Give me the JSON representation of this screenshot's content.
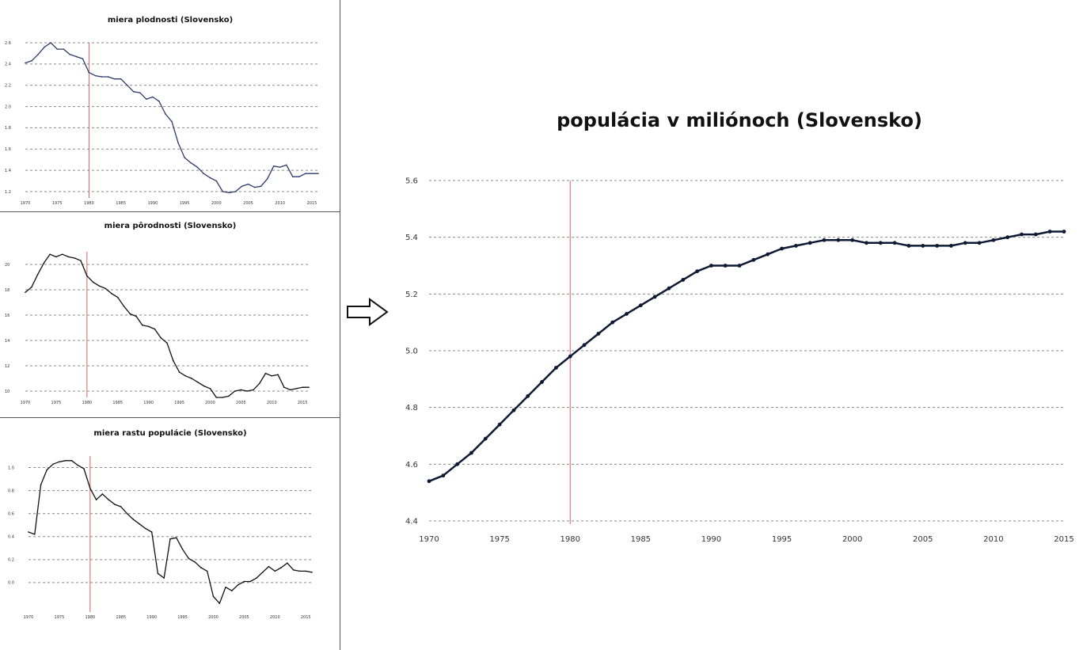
{
  "chart_data": [
    {
      "id": "fertility",
      "type": "line",
      "title": "miera plodnosti (Slovensko)",
      "x": [
        1970,
        1971,
        1972,
        1973,
        1974,
        1975,
        1976,
        1977,
        1978,
        1979,
        1980,
        1981,
        1982,
        1983,
        1984,
        1985,
        1986,
        1987,
        1988,
        1989,
        1990,
        1991,
        1992,
        1993,
        1994,
        1995,
        1996,
        1997,
        1998,
        1999,
        2000,
        2001,
        2002,
        2003,
        2004,
        2005,
        2006,
        2007,
        2008,
        2009,
        2010,
        2011,
        2012,
        2013,
        2014,
        2015,
        2016
      ],
      "values": [
        2.41,
        2.43,
        2.49,
        2.56,
        2.6,
        2.54,
        2.54,
        2.49,
        2.47,
        2.45,
        2.32,
        2.29,
        2.28,
        2.28,
        2.26,
        2.26,
        2.2,
        2.14,
        2.13,
        2.07,
        2.09,
        2.05,
        1.93,
        1.86,
        1.66,
        1.52,
        1.47,
        1.43,
        1.37,
        1.33,
        1.3,
        1.2,
        1.19,
        1.2,
        1.25,
        1.27,
        1.24,
        1.25,
        1.32,
        1.44,
        1.43,
        1.45,
        1.34,
        1.34,
        1.37,
        1.37,
        1.37
      ],
      "yticks": [
        "1.2",
        "1.4",
        "1.6",
        "1.8",
        "2.0",
        "2.2",
        "2.4",
        "2.6"
      ],
      "ylim": [
        1.2,
        2.6
      ],
      "xticks": [
        "1970",
        "1975",
        "1980",
        "1985",
        "1990",
        "1995",
        "2000",
        "2005",
        "2010",
        "2015"
      ],
      "marker_year": 1980,
      "line_color": "#2d3a6b",
      "grid": true
    },
    {
      "id": "birth",
      "type": "line",
      "title": "miera pôrodnosti (Slovensko)",
      "x": [
        1970,
        1971,
        1972,
        1973,
        1974,
        1975,
        1976,
        1977,
        1978,
        1979,
        1980,
        1981,
        1982,
        1983,
        1984,
        1985,
        1986,
        1987,
        1988,
        1989,
        1990,
        1991,
        1992,
        1993,
        1994,
        1995,
        1996,
        1997,
        1998,
        1999,
        2000,
        2001,
        2002,
        2003,
        2004,
        2005,
        2006,
        2007,
        2008,
        2009,
        2010,
        2011,
        2012,
        2013,
        2014,
        2015,
        2016
      ],
      "values": [
        17.8,
        18.2,
        19.2,
        20.1,
        20.8,
        20.6,
        20.8,
        20.6,
        20.5,
        20.3,
        19.1,
        18.6,
        18.3,
        18.1,
        17.7,
        17.4,
        16.7,
        16.1,
        15.9,
        15.2,
        15.1,
        14.9,
        14.2,
        13.8,
        12.4,
        11.5,
        11.2,
        11.0,
        10.7,
        10.4,
        10.2,
        9.5,
        9.5,
        9.6,
        10.0,
        10.1,
        10.0,
        10.1,
        10.6,
        11.4,
        11.2,
        11.3,
        10.3,
        10.1,
        10.2,
        10.3,
        10.3
      ],
      "yticks": [
        "10",
        "12",
        "14",
        "16",
        "18",
        "20"
      ],
      "ylim": [
        10,
        21
      ],
      "xticks": [
        "1970",
        "1975",
        "1980",
        "1985",
        "1990",
        "1995",
        "2000",
        "2005",
        "2010",
        "2015"
      ],
      "marker_year": 1980,
      "line_color": "#111111",
      "grid": true
    },
    {
      "id": "growth",
      "type": "line",
      "title": "miera rastu populácie (Slovensko)",
      "x": [
        1970,
        1971,
        1972,
        1973,
        1974,
        1975,
        1976,
        1977,
        1978,
        1979,
        1980,
        1981,
        1982,
        1983,
        1984,
        1985,
        1986,
        1987,
        1988,
        1989,
        1990,
        1991,
        1992,
        1993,
        1994,
        1995,
        1996,
        1997,
        1998,
        1999,
        2000,
        2001,
        2002,
        2003,
        2004,
        2005,
        2006,
        2007,
        2008,
        2009,
        2010,
        2011,
        2012,
        2013,
        2014,
        2015,
        2016
      ],
      "values": [
        0.44,
        0.42,
        0.85,
        0.98,
        1.03,
        1.05,
        1.06,
        1.06,
        1.02,
        0.99,
        0.82,
        0.72,
        0.77,
        0.72,
        0.68,
        0.66,
        0.6,
        0.55,
        0.51,
        0.47,
        0.44,
        0.08,
        0.04,
        0.38,
        0.39,
        0.29,
        0.21,
        0.18,
        0.13,
        0.1,
        -0.12,
        -0.18,
        -0.04,
        -0.07,
        -0.02,
        0.01,
        0.01,
        0.04,
        0.09,
        0.14,
        0.1,
        0.13,
        0.17,
        0.11,
        0.1,
        0.1,
        0.09
      ],
      "yticks": [
        "0.0",
        "0.2",
        "0.4",
        "0.6",
        "0.8",
        "1.0"
      ],
      "ylim": [
        -0.2,
        1.1
      ],
      "xticks": [
        "1970",
        "1975",
        "1980",
        "1985",
        "1990",
        "1995",
        "2000",
        "2005",
        "2010",
        "2015"
      ],
      "marker_year": 1980,
      "line_color": "#111111",
      "grid": true
    },
    {
      "id": "population",
      "type": "line",
      "title": "populácia v miliónoch (Slovensko)",
      "x": [
        1970,
        1971,
        1972,
        1973,
        1974,
        1975,
        1976,
        1977,
        1978,
        1979,
        1980,
        1981,
        1982,
        1983,
        1984,
        1985,
        1986,
        1987,
        1988,
        1989,
        1990,
        1991,
        1992,
        1993,
        1994,
        1995,
        1996,
        1997,
        1998,
        1999,
        2000,
        2001,
        2002,
        2003,
        2004,
        2005,
        2006,
        2007,
        2008,
        2009,
        2010,
        2011,
        2012,
        2013,
        2014,
        2015
      ],
      "values": [
        4.54,
        4.56,
        4.6,
        4.64,
        4.69,
        4.74,
        4.79,
        4.84,
        4.89,
        4.94,
        4.98,
        5.02,
        5.06,
        5.1,
        5.13,
        5.16,
        5.19,
        5.22,
        5.25,
        5.28,
        5.3,
        5.3,
        5.3,
        5.32,
        5.34,
        5.36,
        5.37,
        5.38,
        5.39,
        5.39,
        5.39,
        5.38,
        5.38,
        5.38,
        5.37,
        5.37,
        5.37,
        5.37,
        5.38,
        5.38,
        5.39,
        5.4,
        5.41,
        5.41,
        5.42,
        5.42
      ],
      "yticks": [
        "4.4",
        "4.6",
        "4.8",
        "5.0",
        "5.2",
        "5.4",
        "5.6"
      ],
      "ylim": [
        4.4,
        5.6
      ],
      "xticks": [
        "1970",
        "1975",
        "1980",
        "1985",
        "1990",
        "1995",
        "2000",
        "2005",
        "2010",
        "2015"
      ],
      "marker_year": 1980,
      "line_color": "#0e1a33",
      "markers": true,
      "grid": true
    }
  ]
}
